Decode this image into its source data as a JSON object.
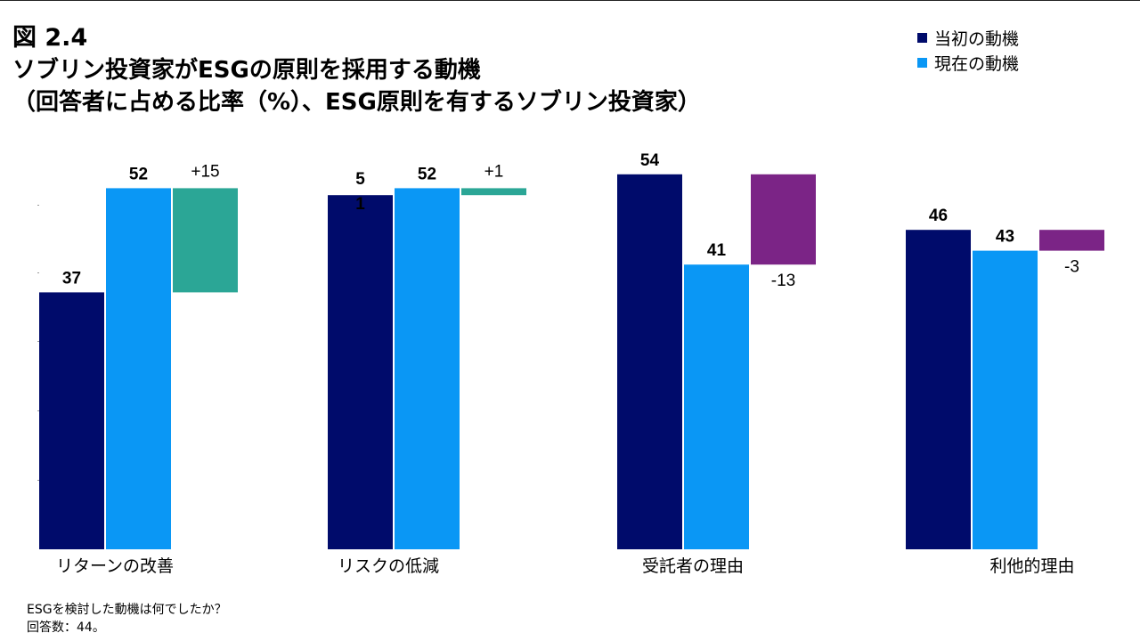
{
  "figure_label": "図 2.4",
  "title_line1": "ソブリン投資家がESGの原則を採用する動機",
  "title_line2": "（回答者に占める比率（%）、ESG原則を有するソブリン投資家）",
  "legend": [
    {
      "label": "当初の動機",
      "color": "#000b6b"
    },
    {
      "label": "現在の動機",
      "color": "#0a97f5"
    }
  ],
  "colors": {
    "initial": "#000b6b",
    "current": "#0a97f5",
    "increase": "#2ba696",
    "decrease": "#7b2486"
  },
  "chart_data": {
    "type": "bar",
    "categories": [
      "リターンの改善",
      "リスクの低減",
      "受託者の理由",
      "利他的理由"
    ],
    "series": [
      {
        "name": "当初の動機",
        "values": [
          37,
          51,
          54,
          46
        ],
        "labels": [
          "37",
          "5\n1",
          "54",
          "46"
        ]
      },
      {
        "name": "現在の動機",
        "values": [
          52,
          52,
          41,
          43
        ],
        "labels": [
          "52",
          "52",
          "41",
          "43"
        ]
      }
    ],
    "change": {
      "values": [
        15,
        1,
        -13,
        -3
      ],
      "labels": [
        "+15",
        "+1",
        "-13",
        "-3"
      ]
    },
    "ylim": [
      0,
      54
    ]
  },
  "notes": {
    "question": "ESGを検討した動機は何でしたか？",
    "responses": "回答数：44。"
  }
}
